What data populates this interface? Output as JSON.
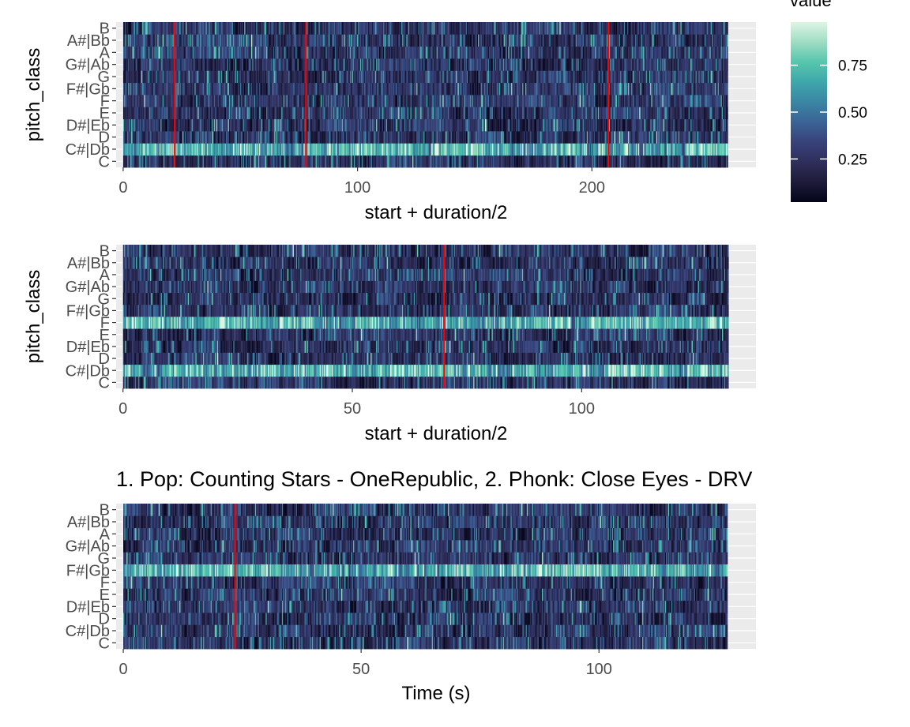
{
  "chart_data": [
    {
      "type": "heatmap",
      "title": "",
      "xlabel": "start + duration/2",
      "ylabel": "pitch_class",
      "x_ticks": [
        0,
        100,
        200
      ],
      "x_range": [
        0,
        258
      ],
      "xlim": [
        -3,
        270
      ],
      "y_categories": [
        "C",
        "C#|Db",
        "D",
        "D#|Eb",
        "E",
        "F",
        "F#|Gb",
        "G",
        "G#|Ab",
        "A",
        "A#|Bb",
        "B"
      ],
      "segment_boundaries": [
        22,
        78,
        207
      ],
      "n_frames": 600,
      "seed": 11,
      "strong_rows": [
        "C#|Db"
      ]
    },
    {
      "type": "heatmap",
      "title": "",
      "xlabel": "start + duration/2",
      "ylabel": "pitch_class",
      "x_ticks": [
        0,
        50,
        100
      ],
      "x_range": [
        0,
        132
      ],
      "xlim": [
        -1.5,
        138
      ],
      "y_categories": [
        "C",
        "C#|Db",
        "D",
        "D#|Eb",
        "E",
        "F",
        "F#|Gb",
        "G",
        "G#|Ab",
        "A",
        "A#|Bb",
        "B"
      ],
      "segment_boundaries": [
        70
      ],
      "n_frames": 560,
      "seed": 23,
      "strong_rows": [
        "C#|Db",
        "F"
      ]
    },
    {
      "type": "heatmap",
      "title": "1. Pop: Counting Stars - OneRepublic, 2. Phonk: Close Eyes - DRV",
      "xlabel": "Time (s)",
      "ylabel": "",
      "x_ticks": [
        0,
        50,
        100
      ],
      "x_range": [
        0,
        127
      ],
      "xlim": [
        -1.5,
        133
      ],
      "y_categories": [
        "C",
        "C#|Db",
        "D",
        "D#|Eb",
        "E",
        "F",
        "F#|Gb",
        "G",
        "G#|Ab",
        "A",
        "A#|Bb",
        "B"
      ],
      "segment_boundaries": [
        23.5
      ],
      "n_frames": 560,
      "seed": 37,
      "strong_rows": [
        "F#|Gb"
      ]
    }
  ],
  "legend": {
    "title": "value",
    "ticks": [
      0.25,
      0.5,
      0.75
    ],
    "tick_labels": [
      "0.25",
      "0.50",
      "0.75"
    ],
    "range": [
      0.02,
      0.98
    ]
  },
  "colors": {
    "panel_bg": "#ebebeb",
    "grid": "#ffffff",
    "boundary_line": "#ff0000",
    "colormap": [
      "#03051a",
      "#1e1b3a",
      "#2e2f5b",
      "#38427a",
      "#3b6396",
      "#3a86a3",
      "#3ea7ab",
      "#56c6ad",
      "#9edcc3",
      "#def5e5"
    ]
  }
}
